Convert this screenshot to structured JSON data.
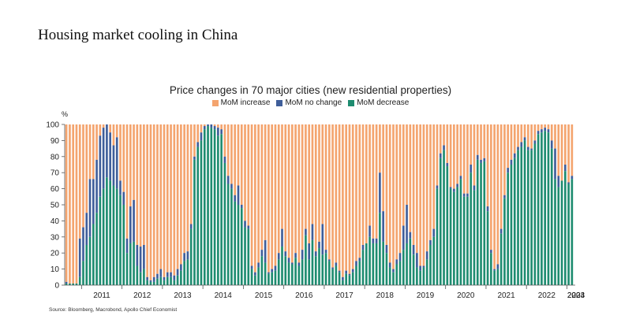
{
  "page": {
    "title": "Housing market cooling in China"
  },
  "source": "Source: Bloomberg, Macrobond, Apollo Chief Economist",
  "colors": {
    "increase": "#f4a46e",
    "nochange": "#3f5e9a",
    "decrease": "#1e8c70"
  },
  "chart_data": {
    "type": "bar",
    "stacked": true,
    "title": "Price changes in 70 major cities (new residential properties)",
    "ylabel": "%",
    "ylim": [
      0,
      100
    ],
    "yticks": [
      0,
      10,
      20,
      30,
      40,
      50,
      60,
      70,
      80,
      90,
      100
    ],
    "xticks": [
      "2011",
      "2012",
      "2013",
      "2014",
      "2015",
      "2016",
      "2017",
      "2018",
      "2019",
      "2020",
      "2021",
      "2022",
      "2023",
      "2024",
      "20"
    ],
    "legend_position": "top",
    "series": [
      {
        "name": "MoM increase",
        "color_key": "increase"
      },
      {
        "name": "MoM no change",
        "color_key": "nochange"
      },
      {
        "name": "MoM decrease",
        "color_key": "decrease"
      }
    ],
    "start_month": "2010-08",
    "total_index": [
      2,
      1,
      1,
      1,
      29,
      36,
      45,
      66,
      66,
      78,
      93,
      98,
      100,
      95,
      87,
      92,
      65,
      58,
      29,
      49,
      53,
      25,
      24,
      25,
      5,
      3,
      5,
      7,
      10,
      5,
      8,
      8,
      6,
      10,
      13,
      20,
      21,
      38,
      80,
      89,
      95,
      99,
      100,
      100,
      99,
      98,
      97,
      80,
      68,
      63,
      56,
      62,
      50,
      40,
      37,
      12,
      8,
      14,
      22,
      28,
      8,
      10,
      12,
      20,
      35,
      21,
      17,
      14,
      20,
      14,
      22,
      35,
      26,
      38,
      21,
      27,
      38,
      22,
      16,
      11,
      14,
      9,
      5,
      9,
      7,
      10,
      15,
      17,
      25,
      26,
      37,
      29,
      29,
      70,
      46,
      25,
      14,
      10,
      16,
      20,
      37,
      50,
      33,
      25,
      20,
      12,
      12,
      21,
      28,
      35,
      62,
      82,
      87,
      76,
      61,
      60,
      63,
      68,
      57,
      57,
      75,
      62,
      81,
      78,
      79,
      49,
      22,
      10,
      13,
      35,
      56,
      73,
      78,
      82,
      86,
      89,
      92,
      86,
      85,
      90,
      96,
      97,
      98,
      97,
      90,
      85,
      68,
      65,
      75,
      64,
      68
    ],
    "decrease": [
      1,
      1,
      1,
      1,
      5,
      15,
      25,
      30,
      38,
      45,
      55,
      60,
      67,
      65,
      62,
      60,
      56,
      50,
      20,
      26,
      27,
      12,
      8,
      10,
      3,
      2,
      2,
      4,
      5,
      3,
      5,
      5,
      3,
      6,
      9,
      15,
      16,
      35,
      78,
      86,
      90,
      97,
      99,
      98,
      97,
      93,
      94,
      76,
      63,
      60,
      52,
      50,
      48,
      36,
      35,
      10,
      6,
      11,
      18,
      14,
      7,
      8,
      9,
      16,
      24,
      18,
      14,
      13,
      17,
      12,
      16,
      31,
      16,
      28,
      18,
      23,
      19,
      20,
      15,
      10,
      12,
      8,
      3,
      7,
      6,
      8,
      12,
      15,
      22,
      26,
      30,
      26,
      26,
      45,
      27,
      20,
      11,
      8,
      13,
      15,
      22,
      26,
      29,
      19,
      11,
      9,
      11,
      16,
      25,
      30,
      60,
      79,
      84,
      74,
      60,
      58,
      61,
      66,
      55,
      55,
      70,
      59,
      78,
      76,
      77,
      46,
      20,
      9,
      10,
      32,
      54,
      70,
      75,
      79,
      84,
      86,
      90,
      84,
      84,
      88,
      94,
      95,
      96,
      95,
      85,
      66,
      61,
      65,
      71,
      63,
      66
    ]
  }
}
